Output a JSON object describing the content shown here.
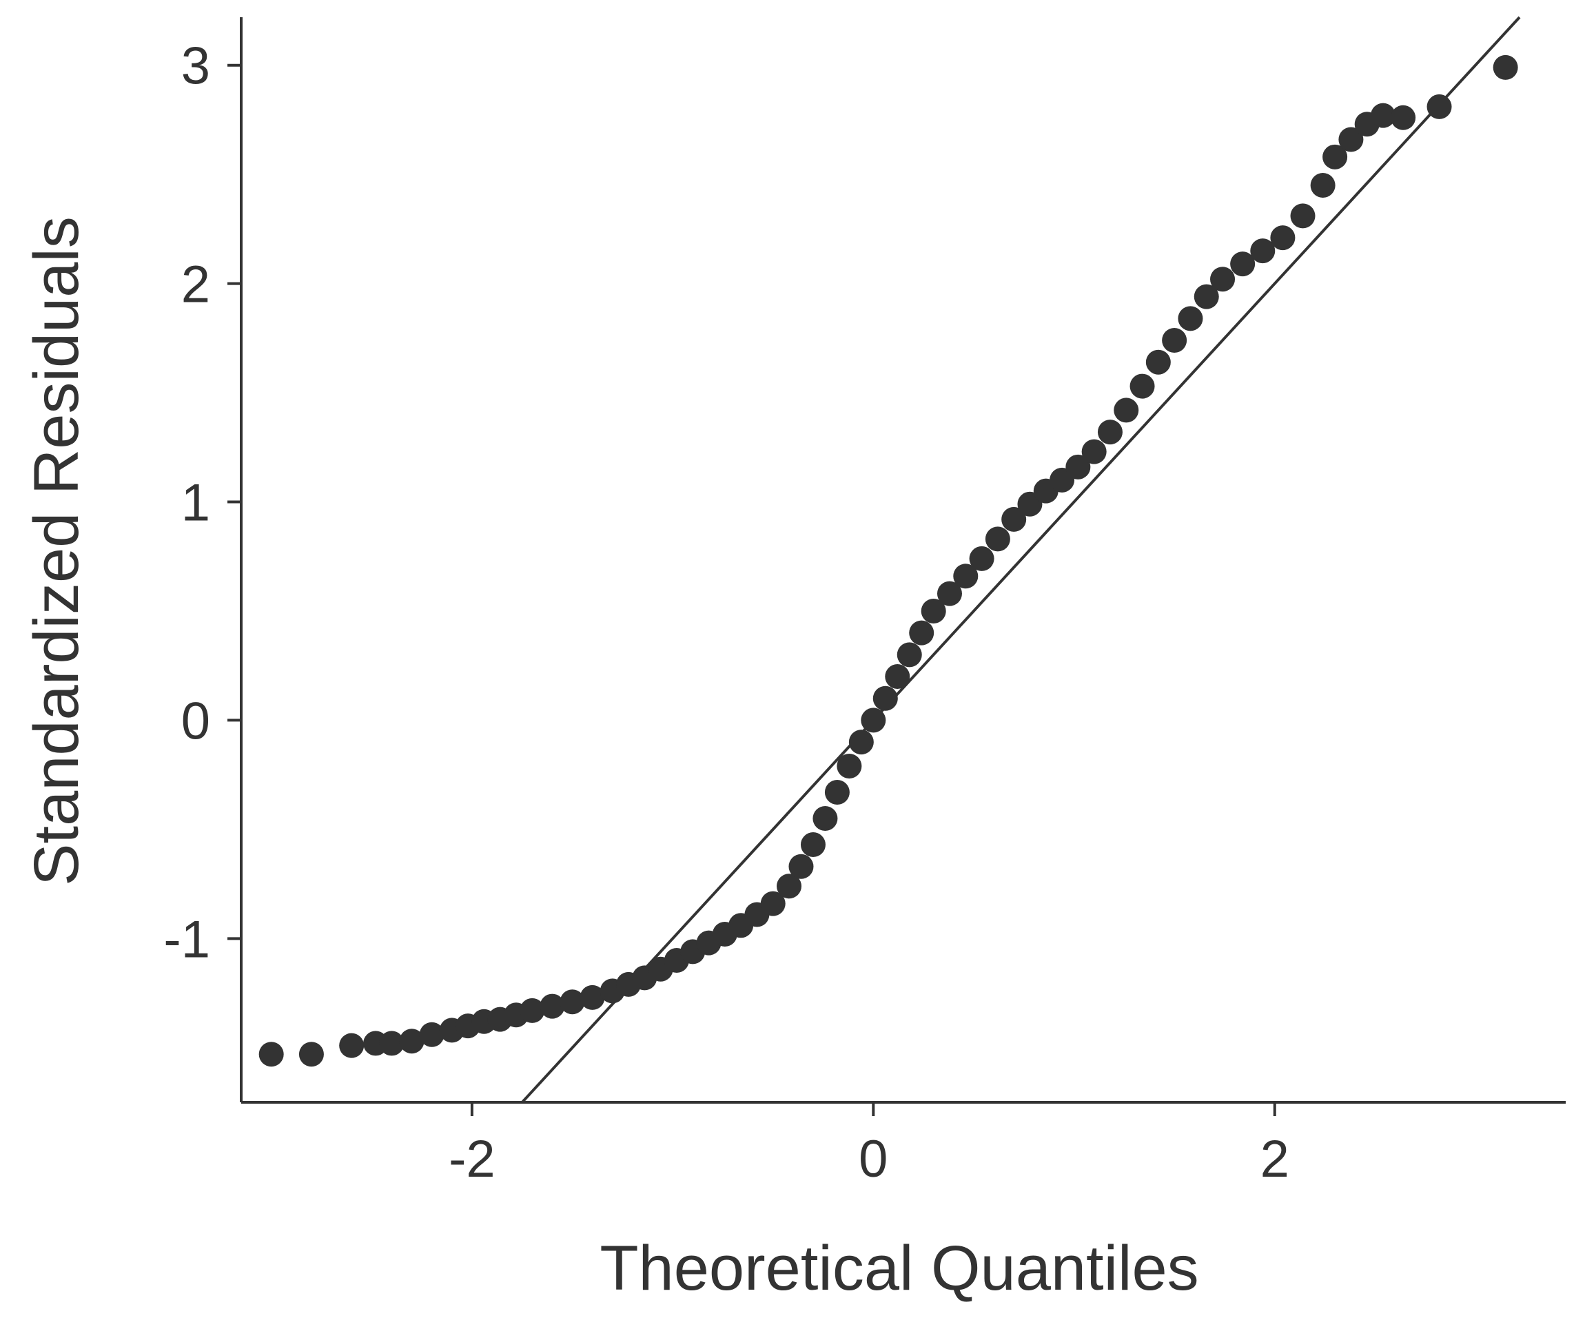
{
  "chart_data": {
    "type": "scatter",
    "title": "",
    "xlabel": "Theoretical Quantiles",
    "ylabel": "Standardized Residuals",
    "xlim": [
      -3.15,
      3.45
    ],
    "ylim": [
      -1.75,
      3.22
    ],
    "xticks": [
      {
        "value": -2,
        "label": "-2"
      },
      {
        "value": 0,
        "label": "0"
      },
      {
        "value": 2,
        "label": "2"
      }
    ],
    "yticks": [
      {
        "value": -1,
        "label": "-1"
      },
      {
        "value": 0,
        "label": "0"
      },
      {
        "value": 1,
        "label": "1"
      },
      {
        "value": 2,
        "label": "2"
      },
      {
        "value": 3,
        "label": "3"
      }
    ],
    "grid": false,
    "legend": "none",
    "reference_line": {
      "slope": 1.0,
      "intercept": 0.0
    },
    "colors": {
      "points": "#333333",
      "line": "#333333",
      "axes": "#333333",
      "background": "#ffffff"
    },
    "series": [
      {
        "values": [
          [
            -3.0,
            -1.53
          ],
          [
            -2.8,
            -1.53
          ],
          [
            -2.6,
            -1.49
          ],
          [
            -2.48,
            -1.48
          ],
          [
            -2.4,
            -1.48
          ],
          [
            -2.3,
            -1.47
          ],
          [
            -2.2,
            -1.44
          ],
          [
            -2.1,
            -1.42
          ],
          [
            -2.02,
            -1.4
          ],
          [
            -1.94,
            -1.38
          ],
          [
            -1.86,
            -1.37
          ],
          [
            -1.78,
            -1.35
          ],
          [
            -1.7,
            -1.33
          ],
          [
            -1.6,
            -1.31
          ],
          [
            -1.5,
            -1.29
          ],
          [
            -1.4,
            -1.27
          ],
          [
            -1.3,
            -1.24
          ],
          [
            -1.22,
            -1.21
          ],
          [
            -1.14,
            -1.18
          ],
          [
            -1.06,
            -1.14
          ],
          [
            -0.98,
            -1.1
          ],
          [
            -0.9,
            -1.06
          ],
          [
            -0.82,
            -1.02
          ],
          [
            -0.74,
            -0.98
          ],
          [
            -0.66,
            -0.94
          ],
          [
            -0.58,
            -0.89
          ],
          [
            -0.5,
            -0.84
          ],
          [
            -0.42,
            -0.76
          ],
          [
            -0.36,
            -0.67
          ],
          [
            -0.3,
            -0.57
          ],
          [
            -0.24,
            -0.45
          ],
          [
            -0.18,
            -0.33
          ],
          [
            -0.12,
            -0.21
          ],
          [
            -0.06,
            -0.1
          ],
          [
            0.0,
            0.0
          ],
          [
            0.06,
            0.1
          ],
          [
            0.12,
            0.2
          ],
          [
            0.18,
            0.3
          ],
          [
            0.24,
            0.4
          ],
          [
            0.3,
            0.5
          ],
          [
            0.38,
            0.58
          ],
          [
            0.46,
            0.66
          ],
          [
            0.54,
            0.74
          ],
          [
            0.62,
            0.83
          ],
          [
            0.7,
            0.92
          ],
          [
            0.78,
            0.99
          ],
          [
            0.86,
            1.05
          ],
          [
            0.94,
            1.1
          ],
          [
            1.02,
            1.16
          ],
          [
            1.1,
            1.23
          ],
          [
            1.18,
            1.32
          ],
          [
            1.26,
            1.42
          ],
          [
            1.34,
            1.53
          ],
          [
            1.42,
            1.64
          ],
          [
            1.5,
            1.74
          ],
          [
            1.58,
            1.84
          ],
          [
            1.66,
            1.94
          ],
          [
            1.74,
            2.02
          ],
          [
            1.84,
            2.09
          ],
          [
            1.94,
            2.15
          ],
          [
            2.04,
            2.21
          ],
          [
            2.14,
            2.31
          ],
          [
            2.24,
            2.45
          ],
          [
            2.3,
            2.58
          ],
          [
            2.38,
            2.66
          ],
          [
            2.46,
            2.73
          ],
          [
            2.54,
            2.77
          ],
          [
            2.64,
            2.76
          ],
          [
            2.82,
            2.81
          ],
          [
            3.15,
            2.99
          ]
        ]
      }
    ]
  }
}
